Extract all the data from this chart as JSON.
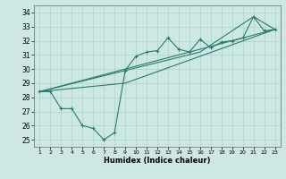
{
  "xlabel": "Humidex (Indice chaleur)",
  "x_ticks": [
    1,
    2,
    3,
    4,
    5,
    6,
    7,
    8,
    9,
    10,
    11,
    12,
    13,
    14,
    15,
    16,
    17,
    18,
    19,
    20,
    21,
    22,
    23
  ],
  "ylim": [
    24.5,
    34.5
  ],
  "xlim": [
    0.5,
    23.5
  ],
  "yticks": [
    25,
    26,
    27,
    28,
    29,
    30,
    31,
    32,
    33,
    34
  ],
  "bg_color": "#cde8e2",
  "grid_color": "#aad4cc",
  "line_color": "#2a7a70",
  "line1_x": [
    1,
    2,
    3,
    4,
    5,
    6,
    7,
    8,
    9,
    10,
    11,
    12,
    13,
    14,
    15,
    16,
    17,
    18,
    19,
    20,
    21,
    22,
    23
  ],
  "line1_y": [
    28.4,
    28.4,
    27.2,
    27.2,
    26.0,
    25.8,
    25.0,
    25.5,
    29.9,
    30.9,
    31.2,
    31.3,
    32.2,
    31.4,
    31.2,
    32.1,
    31.5,
    31.9,
    32.0,
    32.2,
    33.7,
    32.7,
    32.8
  ],
  "line2_x": [
    1,
    23
  ],
  "line2_y": [
    28.4,
    32.8
  ],
  "line3_x": [
    1,
    9,
    23
  ],
  "line3_y": [
    28.4,
    29.0,
    32.8
  ],
  "line4_x": [
    1,
    16,
    21,
    23
  ],
  "line4_y": [
    28.4,
    31.2,
    33.7,
    32.8
  ]
}
